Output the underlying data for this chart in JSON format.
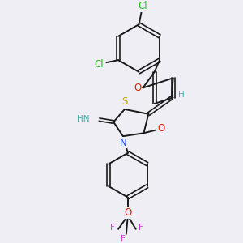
{
  "bg_color": "#eeeef4",
  "bond_color": "#1a1a1a",
  "colors": {
    "Cl": "#22bb22",
    "O": "#dd2200",
    "N": "#2244ff",
    "N_imine": "#44aaaa",
    "S": "#bbaa00",
    "F": "#cc44cc",
    "H": "#44aaaa",
    "C": "#1a1a1a"
  },
  "figsize": [
    3.0,
    3.0
  ],
  "dpi": 100
}
